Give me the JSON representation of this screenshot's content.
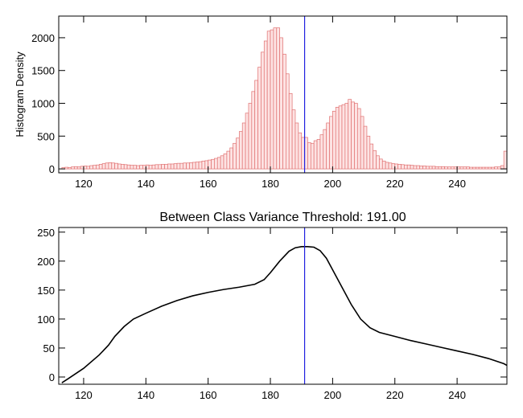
{
  "chart_data": [
    {
      "type": "histogram",
      "ylabel": "Histogram Density",
      "bins": [
        112,
        113,
        114,
        115,
        116,
        117,
        118,
        119,
        120,
        121,
        122,
        123,
        124,
        125,
        126,
        127,
        128,
        129,
        130,
        131,
        132,
        133,
        134,
        135,
        136,
        137,
        138,
        139,
        140,
        141,
        142,
        143,
        144,
        145,
        146,
        147,
        148,
        149,
        150,
        151,
        152,
        153,
        154,
        155,
        156,
        157,
        158,
        159,
        160,
        161,
        162,
        163,
        164,
        165,
        166,
        167,
        168,
        169,
        170,
        171,
        172,
        173,
        174,
        175,
        176,
        177,
        178,
        179,
        180,
        181,
        182,
        183,
        184,
        185,
        186,
        187,
        188,
        189,
        190,
        191,
        192,
        193,
        194,
        195,
        196,
        197,
        198,
        199,
        200,
        201,
        202,
        203,
        204,
        205,
        206,
        207,
        208,
        209,
        210,
        211,
        212,
        213,
        214,
        215,
        216,
        217,
        218,
        219,
        220,
        221,
        222,
        223,
        224,
        225,
        226,
        227,
        228,
        229,
        230,
        231,
        232,
        233,
        234,
        235,
        236,
        237,
        238,
        239,
        240,
        241,
        242,
        243,
        244,
        245,
        246,
        247,
        248,
        249,
        250,
        251,
        252,
        253,
        254,
        255,
        256
      ],
      "counts": [
        0,
        20,
        25,
        20,
        30,
        35,
        30,
        40,
        45,
        40,
        50,
        55,
        60,
        70,
        80,
        90,
        95,
        90,
        85,
        75,
        70,
        65,
        60,
        55,
        55,
        50,
        55,
        55,
        60,
        55,
        60,
        65,
        65,
        70,
        70,
        75,
        75,
        80,
        85,
        85,
        90,
        90,
        95,
        100,
        105,
        110,
        120,
        125,
        135,
        145,
        160,
        175,
        200,
        230,
        270,
        320,
        390,
        470,
        570,
        700,
        850,
        1000,
        1180,
        1350,
        1550,
        1780,
        1950,
        2100,
        2120,
        2150,
        2150,
        2000,
        1750,
        1450,
        1150,
        900,
        700,
        550,
        480,
        480,
        400,
        390,
        430,
        450,
        520,
        600,
        700,
        800,
        880,
        940,
        960,
        980,
        1000,
        1060,
        1020,
        1000,
        920,
        800,
        650,
        500,
        380,
        280,
        200,
        150,
        120,
        100,
        90,
        80,
        75,
        70,
        65,
        60,
        60,
        55,
        50,
        50,
        45,
        45,
        40,
        40,
        40,
        35,
        35,
        35,
        30,
        30,
        30,
        30,
        30,
        30,
        30,
        30,
        25,
        25,
        25,
        25,
        25,
        25,
        25,
        25,
        30,
        30,
        50,
        270
      ],
      "color": "#fde3e3",
      "edge_color": "#e07070",
      "xlim": [
        112,
        256
      ],
      "ylim": [
        -60,
        2330
      ],
      "xticks": [
        120,
        140,
        160,
        180,
        200,
        220,
        240
      ],
      "yticks": [
        0,
        500,
        1000,
        1500,
        2000
      ],
      "threshold": 191,
      "threshold_color": "#2020e0"
    },
    {
      "type": "line",
      "title": "Between Class Variance Threshold: 191.00",
      "x": [
        113,
        115,
        120,
        125,
        128,
        130,
        133,
        136,
        140,
        145,
        150,
        155,
        160,
        165,
        170,
        175,
        178,
        180,
        183,
        186,
        188,
        190,
        192,
        194,
        196,
        198,
        200,
        203,
        206,
        209,
        212,
        215,
        220,
        225,
        230,
        235,
        240,
        245,
        250,
        255,
        256
      ],
      "values": [
        -10,
        -3,
        15,
        38,
        55,
        70,
        87,
        100,
        110,
        122,
        132,
        140,
        146,
        151,
        155,
        160,
        168,
        180,
        200,
        217,
        223,
        225,
        225,
        224,
        218,
        205,
        185,
        155,
        125,
        100,
        85,
        77,
        70,
        63,
        57,
        51,
        45,
        39,
        32,
        23,
        20
      ],
      "color": "#000000",
      "xlim": [
        112,
        256
      ],
      "ylim": [
        -12.5,
        258
      ],
      "xticks": [
        120,
        140,
        160,
        180,
        200,
        220,
        240
      ],
      "yticks": [
        0,
        50,
        100,
        150,
        200,
        250
      ],
      "threshold": 191,
      "threshold_color": "#2020e0"
    }
  ]
}
